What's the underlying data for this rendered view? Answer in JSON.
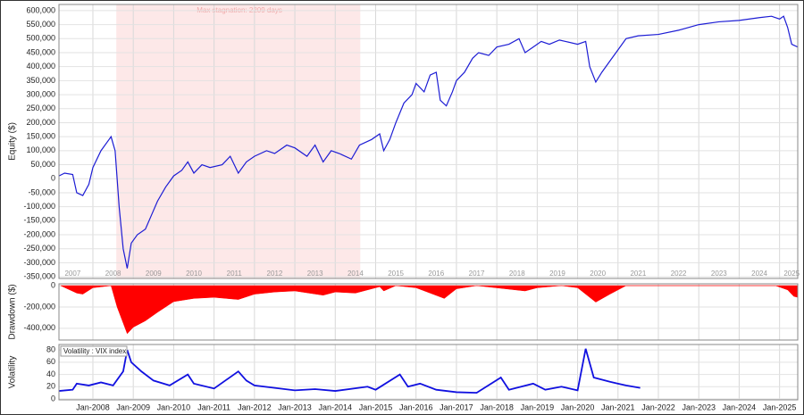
{
  "chart_data": [
    {
      "type": "line",
      "ylabel": "Equity ($)",
      "annotation": "Max stagnation: 2209 days",
      "stagnation": [
        2008.58,
        2014.62
      ],
      "xlim": [
        2007.16,
        2025.45
      ],
      "ylim": [
        -356000,
        622000
      ],
      "yticks": [
        {
          "value": -350000,
          "label": "-350,000"
        },
        {
          "value": -300000,
          "label": "-300,000"
        },
        {
          "value": -250000,
          "label": "-250,000"
        },
        {
          "value": -200000,
          "label": "-200,000"
        },
        {
          "value": -150000,
          "label": "-150,000"
        },
        {
          "value": -100000,
          "label": "-100,000"
        },
        {
          "value": -50000,
          "label": "-50,000"
        },
        0,
        {
          "value": 50000,
          "label": "50,000"
        },
        {
          "value": 100000,
          "label": "100,000"
        },
        {
          "value": 150000,
          "label": "150,000"
        },
        {
          "value": 200000,
          "label": "200,000"
        },
        {
          "value": 250000,
          "label": "250,000"
        },
        {
          "value": 300000,
          "label": "300,000"
        },
        {
          "value": 350000,
          "label": "350,000"
        },
        {
          "value": 400000,
          "label": "400,000"
        },
        {
          "value": 450000,
          "label": "450,000"
        },
        {
          "value": 500000,
          "label": "500,000"
        },
        {
          "value": 550000,
          "label": "550,000"
        },
        {
          "value": 600000,
          "label": "600,000"
        }
      ],
      "xticks": [
        {
          "value": 2007.5,
          "label": "2007"
        },
        {
          "value": 2008.5,
          "label": "2008"
        },
        {
          "value": 2009.5,
          "label": "2009"
        },
        {
          "value": 2010.5,
          "label": "2010"
        },
        {
          "value": 2011.5,
          "label": "2011"
        },
        {
          "value": 2012.5,
          "label": "2012"
        },
        {
          "value": 2013.5,
          "label": "2013"
        },
        {
          "value": 2014.5,
          "label": "2014"
        },
        {
          "value": 2015.5,
          "label": "2015"
        },
        {
          "value": 2016.5,
          "label": "2016"
        },
        {
          "value": 2017.5,
          "label": "2017"
        },
        {
          "value": 2018.5,
          "label": "2018"
        },
        {
          "value": 2019.5,
          "label": "2019"
        },
        {
          "value": 2020.5,
          "label": "2020"
        },
        {
          "value": 2021.5,
          "label": "2021"
        },
        {
          "value": 2022.5,
          "label": "2022"
        },
        {
          "value": 2023.5,
          "label": "2023"
        },
        {
          "value": 2024.5,
          "label": "2024"
        },
        {
          "value": 2025.3,
          "label": "2025"
        }
      ],
      "x": [
        2007.16,
        2007.3,
        2007.5,
        2007.6,
        2007.75,
        2007.9,
        2008.0,
        2008.2,
        2008.4,
        2008.45,
        2008.55,
        2008.65,
        2008.75,
        2008.85,
        2008.95,
        2009.1,
        2009.3,
        2009.45,
        2009.6,
        2009.8,
        2010.0,
        2010.2,
        2010.35,
        2010.5,
        2010.7,
        2010.9,
        2011.2,
        2011.4,
        2011.6,
        2011.8,
        2012.0,
        2012.3,
        2012.5,
        2012.8,
        2013.0,
        2013.3,
        2013.5,
        2013.7,
        2013.9,
        2014.1,
        2014.4,
        2014.6,
        2014.9,
        2015.1,
        2015.2,
        2015.35,
        2015.5,
        2015.7,
        2015.9,
        2016.0,
        2016.2,
        2016.35,
        2016.5,
        2016.6,
        2016.75,
        2016.9,
        2017.0,
        2017.2,
        2017.4,
        2017.55,
        2017.8,
        2018.0,
        2018.3,
        2018.55,
        2018.7,
        2018.9,
        2019.1,
        2019.3,
        2019.55,
        2019.7,
        2020.0,
        2020.2,
        2020.3,
        2020.45,
        2020.6,
        2020.8,
        2021.0,
        2021.2,
        2021.5,
        2022.0,
        2022.5,
        2023.0,
        2023.5,
        2024.0,
        2024.5,
        2024.8,
        2025.0,
        2025.1,
        2025.2,
        2025.3,
        2025.45
      ],
      "series": [
        {
          "color": "#1c1cd4",
          "values": [
            10000,
            20000,
            15000,
            -50000,
            -60000,
            -20000,
            40000,
            100000,
            140000,
            150000,
            100000,
            -100000,
            -250000,
            -320000,
            -230000,
            -200000,
            -180000,
            -130000,
            -80000,
            -30000,
            10000,
            30000,
            60000,
            20000,
            50000,
            40000,
            50000,
            80000,
            20000,
            60000,
            80000,
            100000,
            90000,
            120000,
            110000,
            80000,
            120000,
            60000,
            100000,
            90000,
            70000,
            120000,
            140000,
            160000,
            100000,
            140000,
            200000,
            270000,
            300000,
            340000,
            310000,
            370000,
            380000,
            280000,
            260000,
            310000,
            350000,
            380000,
            430000,
            450000,
            440000,
            470000,
            480000,
            500000,
            450000,
            470000,
            490000,
            480000,
            495000,
            490000,
            480000,
            490000,
            400000,
            345000,
            380000,
            420000,
            460000,
            500000,
            510000,
            515000,
            530000,
            550000,
            560000,
            565000,
            575000,
            580000,
            570000,
            580000,
            540000,
            480000,
            470000
          ]
        }
      ]
    },
    {
      "type": "area",
      "ylabel": "Drawdown ($)",
      "xlim": [
        2007.16,
        2025.45
      ],
      "ylim": [
        -510000,
        17000
      ],
      "yticks": [
        {
          "value": -400000,
          "label": "-400,000"
        },
        {
          "value": -200000,
          "label": "-200,000"
        },
        0
      ],
      "x": [
        2007.2,
        2007.6,
        2007.75,
        2008.0,
        2008.45,
        2008.6,
        2008.85,
        2009.0,
        2009.3,
        2009.6,
        2010.0,
        2010.5,
        2011.0,
        2011.6,
        2012.0,
        2012.5,
        2013.0,
        2013.7,
        2014.0,
        2014.5,
        2015.1,
        2015.2,
        2015.5,
        2016.0,
        2016.7,
        2017.0,
        2017.5,
        2018.7,
        2019.0,
        2019.6,
        2020.0,
        2020.45,
        2020.8,
        2021.2,
        2022.0,
        2024.9,
        2025.2,
        2025.35,
        2025.45
      ],
      "series": [
        {
          "color": "#ff0000",
          "values": [
            0,
            -70000,
            -80000,
            -20000,
            0,
            -200000,
            -450000,
            -390000,
            -330000,
            -250000,
            -150000,
            -120000,
            -110000,
            -130000,
            -80000,
            -60000,
            -50000,
            -90000,
            -60000,
            -70000,
            -10000,
            -50000,
            0,
            -20000,
            -120000,
            -30000,
            0,
            -50000,
            -20000,
            0,
            -20000,
            -155000,
            -80000,
            0,
            0,
            0,
            -40000,
            -100000,
            -110000
          ]
        }
      ]
    },
    {
      "type": "line",
      "ylabel": "Volatility",
      "xlim": [
        2007.16,
        2025.45
      ],
      "ylim": [
        -1.5,
        89
      ],
      "yticks": [
        0,
        20,
        40,
        60,
        80
      ],
      "xticks": [
        {
          "value": 2008,
          "label": "Jan-2008"
        },
        {
          "value": 2009,
          "label": "Jan-2009"
        },
        {
          "value": 2010,
          "label": "Jan-2010"
        },
        {
          "value": 2011,
          "label": "Jan-2011"
        },
        {
          "value": 2012,
          "label": "Jan-2012"
        },
        {
          "value": 2013,
          "label": "Jan-2013"
        },
        {
          "value": 2014,
          "label": "Jan-2014"
        },
        {
          "value": 2015,
          "label": "Jan-2015"
        },
        {
          "value": 2016,
          "label": "Jan-2016"
        },
        {
          "value": 2017,
          "label": "Jan-2017"
        },
        {
          "value": 2018,
          "label": "Jan-2018"
        },
        {
          "value": 2019,
          "label": "Jan-2019"
        },
        {
          "value": 2020,
          "label": "Jan-2020"
        },
        {
          "value": 2021,
          "label": "Jan-2021"
        },
        {
          "value": 2022,
          "label": "Jan-2022"
        },
        {
          "value": 2023,
          "label": "Jan-2023"
        },
        {
          "value": 2024,
          "label": "Jan-2024"
        },
        {
          "value": 2025,
          "label": "Jan-2025"
        }
      ],
      "x": [
        2007.16,
        2007.5,
        2007.6,
        2007.9,
        2008.2,
        2008.5,
        2008.75,
        2008.85,
        2008.95,
        2009.2,
        2009.5,
        2009.9,
        2010.35,
        2010.5,
        2011.0,
        2011.6,
        2011.8,
        2012.0,
        2012.5,
        2013.0,
        2013.5,
        2014.0,
        2014.8,
        2015.0,
        2015.6,
        2015.8,
        2016.1,
        2016.5,
        2017.0,
        2017.5,
        2018.1,
        2018.3,
        2018.9,
        2019.2,
        2019.6,
        2020.0,
        2020.2,
        2020.4,
        2020.8,
        2021.0,
        2021.2,
        2021.55
      ],
      "series": [
        {
          "name": "Volatility : VIX index",
          "color": "#1010e0",
          "values": [
            13,
            15,
            25,
            22,
            27,
            22,
            45,
            80,
            60,
            45,
            30,
            22,
            40,
            25,
            17,
            45,
            30,
            22,
            18,
            14,
            16,
            13,
            20,
            15,
            40,
            20,
            25,
            15,
            11,
            10,
            35,
            15,
            25,
            15,
            20,
            14,
            82,
            35,
            28,
            25,
            22,
            18
          ]
        }
      ]
    }
  ]
}
